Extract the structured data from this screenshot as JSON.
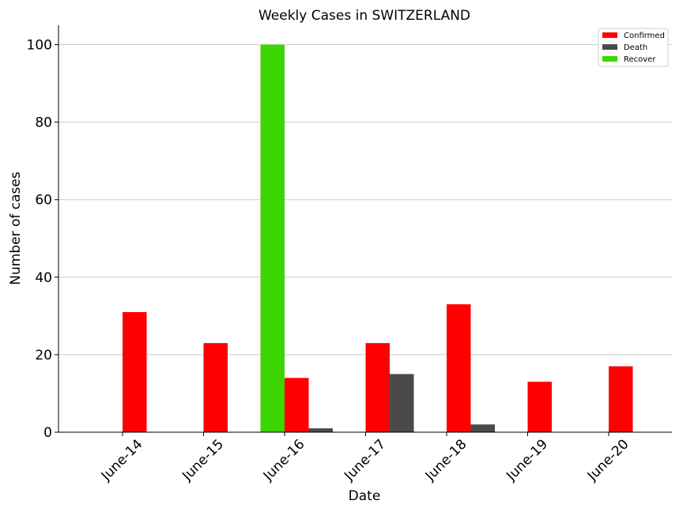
{
  "chart_data": {
    "type": "bar",
    "title": "Weekly Cases in SWITZERLAND",
    "xlabel": "Date",
    "ylabel": "Number of cases",
    "categories": [
      "June-14",
      "June-15",
      "June-16",
      "June-17",
      "June-18",
      "June-19",
      "June-20"
    ],
    "series": [
      {
        "name": "Recover",
        "color": "#3dd600",
        "values": [
          0,
          0,
          100,
          0,
          0,
          0,
          0
        ]
      },
      {
        "name": "Confirmed",
        "color": "#ff0000",
        "values": [
          31,
          23,
          14,
          23,
          33,
          13,
          17
        ]
      },
      {
        "name": "Death",
        "color": "#4a4a4a",
        "values": [
          0,
          0,
          1,
          15,
          2,
          0,
          0
        ]
      }
    ],
    "legend_order": [
      "Confirmed",
      "Death",
      "Recover"
    ],
    "legend_position": "top-right",
    "ylim": [
      0,
      105
    ],
    "yticks": [
      0,
      20,
      40,
      60,
      80,
      100
    ],
    "grid": "y"
  }
}
